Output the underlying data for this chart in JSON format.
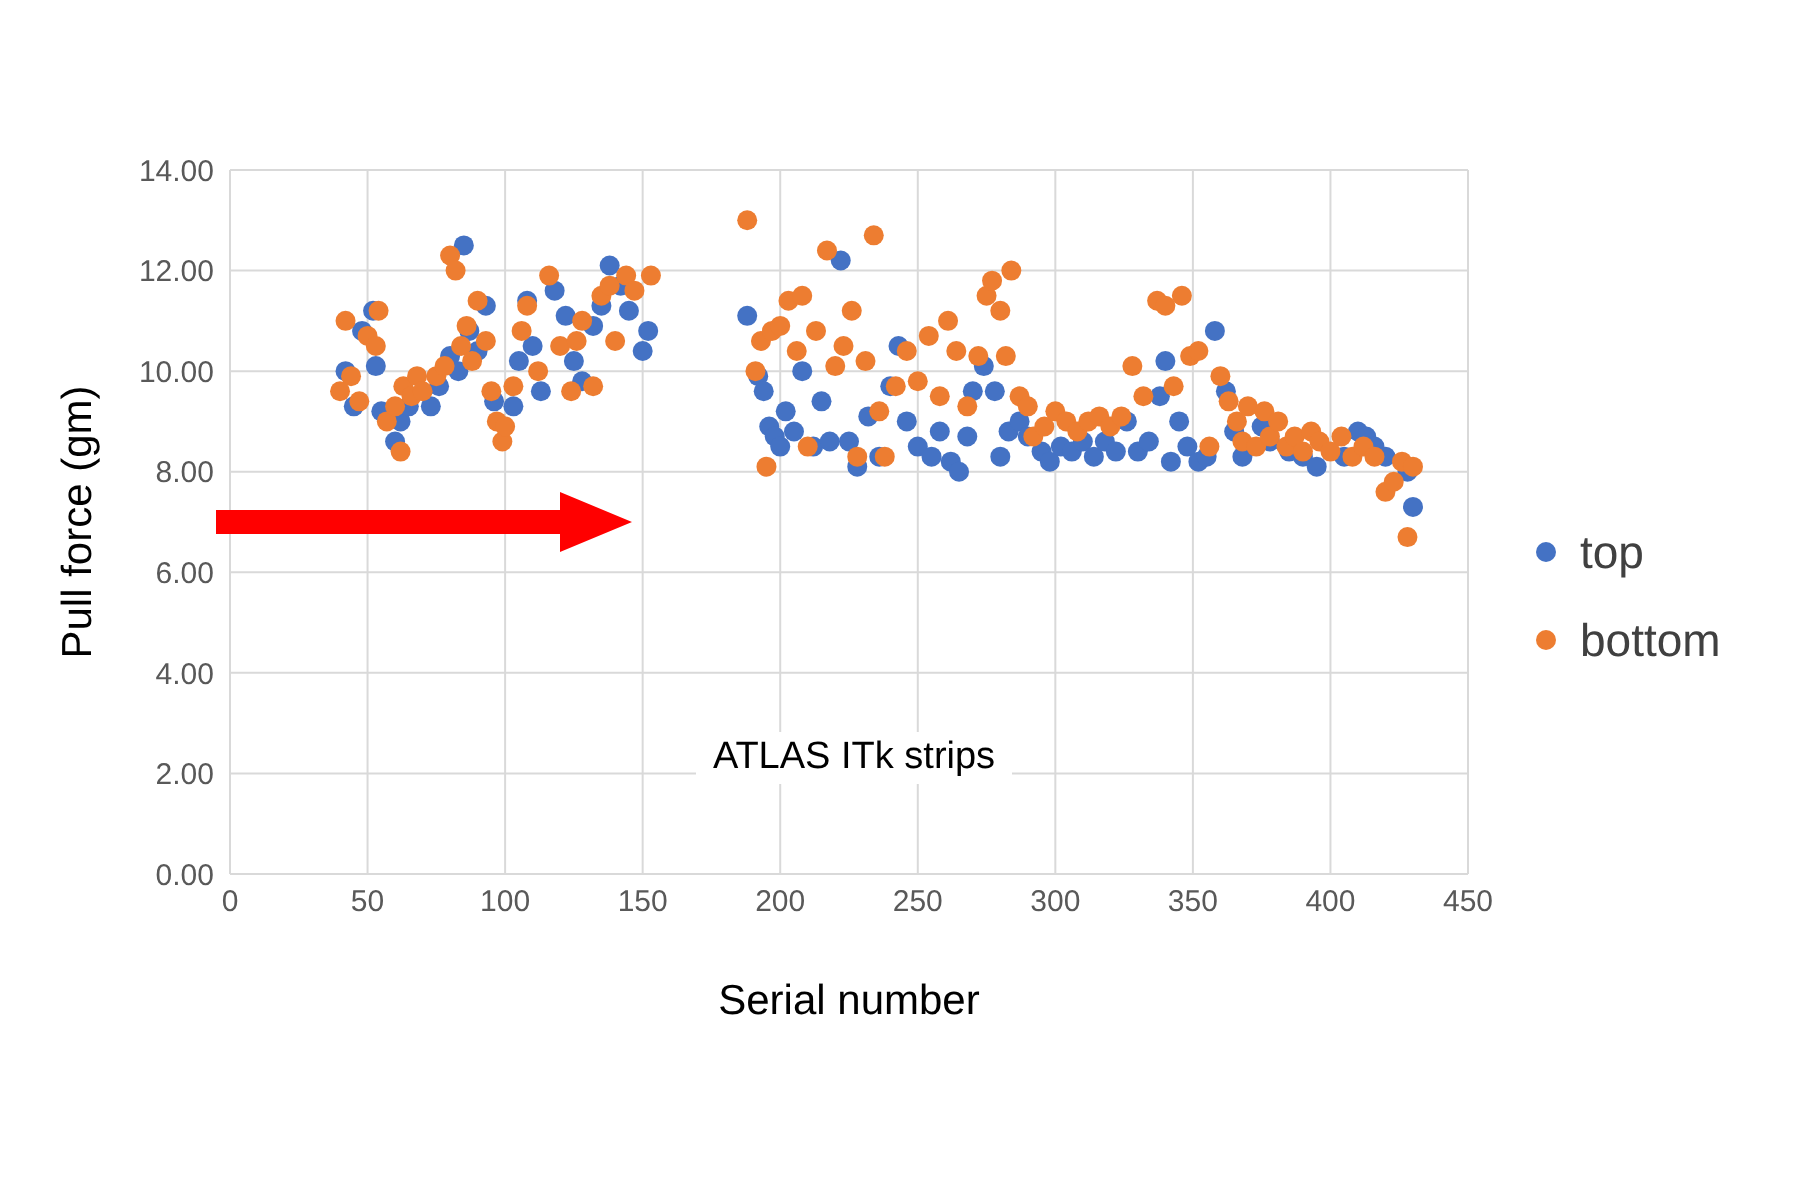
{
  "chart_data": {
    "type": "scatter",
    "xlabel": "Serial number",
    "ylabel": "Pull force (gm)",
    "annotations": [
      "ATLAS ITk strips"
    ],
    "xlim": [
      0,
      450
    ],
    "xticks": [
      0,
      50,
      100,
      150,
      200,
      250,
      300,
      350,
      400,
      450
    ],
    "ylim": [
      0,
      14
    ],
    "yticks": [
      {
        "value": 0,
        "label": "0.00"
      },
      {
        "value": 2,
        "label": "2.00"
      },
      {
        "value": 4,
        "label": "4.00"
      },
      {
        "value": 6,
        "label": "6.00"
      },
      {
        "value": 8,
        "label": "8.00"
      },
      {
        "value": 10,
        "label": "10.00"
      },
      {
        "value": 12,
        "label": "12.00"
      },
      {
        "value": 14,
        "label": "14.00"
      }
    ],
    "grid": true,
    "legend": "right",
    "marker": "circle",
    "series": [
      {
        "name": "top",
        "color": "#4472c4",
        "x": [
          42,
          45,
          48,
          52,
          53,
          55,
          60,
          62,
          65,
          73,
          76,
          80,
          83,
          85,
          87,
          90,
          93,
          96,
          103,
          105,
          108,
          110,
          113,
          118,
          122,
          125,
          128,
          132,
          135,
          138,
          142,
          145,
          150,
          152,
          188,
          192,
          194,
          196,
          198,
          200,
          202,
          205,
          208,
          212,
          215,
          218,
          222,
          225,
          228,
          232,
          236,
          240,
          243,
          246,
          250,
          255,
          258,
          262,
          265,
          268,
          270,
          274,
          278,
          280,
          283,
          287,
          290,
          295,
          298,
          302,
          306,
          310,
          314,
          318,
          322,
          326,
          330,
          334,
          338,
          340,
          342,
          345,
          348,
          352,
          355,
          358,
          362,
          365,
          368,
          375,
          378,
          385,
          390,
          395,
          405,
          410,
          413,
          416,
          420,
          428,
          430
        ],
        "values": [
          10.0,
          9.3,
          10.8,
          11.2,
          10.1,
          9.2,
          8.6,
          9.0,
          9.3,
          9.3,
          9.7,
          10.3,
          10.0,
          12.5,
          10.8,
          10.4,
          11.3,
          9.4,
          9.3,
          10.2,
          11.4,
          10.5,
          9.6,
          11.6,
          11.1,
          10.2,
          9.8,
          10.9,
          11.3,
          12.1,
          11.7,
          11.2,
          10.4,
          10.8,
          11.1,
          9.9,
          9.6,
          8.9,
          8.7,
          8.5,
          9.2,
          8.8,
          10.0,
          8.5,
          9.4,
          8.6,
          12.2,
          8.6,
          8.1,
          9.1,
          8.3,
          9.7,
          10.5,
          9.0,
          8.5,
          8.3,
          8.8,
          8.2,
          8.0,
          8.7,
          9.6,
          10.1,
          9.6,
          8.3,
          8.8,
          9.0,
          8.7,
          8.4,
          8.2,
          8.5,
          8.4,
          8.6,
          8.3,
          8.6,
          8.4,
          9.0,
          8.4,
          8.6,
          9.5,
          10.2,
          8.2,
          9.0,
          8.5,
          8.2,
          8.3,
          10.8,
          9.6,
          8.8,
          8.3,
          8.9,
          8.6,
          8.4,
          8.3,
          8.1,
          8.3,
          8.8,
          8.7,
          8.5,
          8.3,
          8.0,
          7.3
        ]
      },
      {
        "name": "bottom",
        "color": "#ed7d31",
        "x": [
          40,
          42,
          44,
          47,
          50,
          53,
          54,
          57,
          60,
          62,
          63,
          66,
          68,
          70,
          75,
          78,
          80,
          82,
          84,
          86,
          88,
          90,
          93,
          95,
          97,
          99,
          100,
          103,
          106,
          108,
          112,
          116,
          120,
          124,
          126,
          128,
          132,
          135,
          138,
          140,
          144,
          147,
          153,
          188,
          191,
          193,
          195,
          197,
          200,
          203,
          206,
          208,
          210,
          213,
          217,
          220,
          223,
          226,
          228,
          231,
          234,
          236,
          238,
          242,
          246,
          250,
          254,
          258,
          261,
          264,
          268,
          272,
          275,
          277,
          280,
          282,
          284,
          287,
          290,
          292,
          296,
          300,
          304,
          308,
          312,
          316,
          320,
          324,
          328,
          332,
          337,
          340,
          343,
          346,
          349,
          352,
          356,
          360,
          363,
          366,
          368,
          370,
          373,
          376,
          378,
          381,
          384,
          387,
          390,
          393,
          396,
          400,
          404,
          408,
          412,
          416,
          420,
          423,
          426,
          428,
          430
        ],
        "values": [
          9.6,
          11.0,
          9.9,
          9.4,
          10.7,
          10.5,
          11.2,
          9.0,
          9.3,
          8.4,
          9.7,
          9.5,
          9.9,
          9.6,
          9.9,
          10.1,
          12.3,
          12.0,
          10.5,
          10.9,
          10.2,
          11.4,
          10.6,
          9.6,
          9.0,
          8.6,
          8.9,
          9.7,
          10.8,
          11.3,
          10.0,
          11.9,
          10.5,
          9.6,
          10.6,
          11.0,
          9.7,
          11.5,
          11.7,
          10.6,
          11.9,
          11.6,
          11.9,
          13.0,
          10.0,
          10.6,
          8.1,
          10.8,
          10.9,
          11.4,
          10.4,
          11.5,
          8.5,
          10.8,
          12.4,
          10.1,
          10.5,
          11.2,
          8.3,
          10.2,
          12.7,
          9.2,
          8.3,
          9.7,
          10.4,
          9.8,
          10.7,
          9.5,
          11.0,
          10.4,
          9.3,
          10.3,
          11.5,
          11.8,
          11.2,
          10.3,
          12.0,
          9.5,
          9.3,
          8.7,
          8.9,
          9.2,
          9.0,
          8.8,
          9.0,
          9.1,
          8.9,
          9.1,
          10.1,
          9.5,
          11.4,
          11.3,
          9.7,
          11.5,
          10.3,
          10.4,
          8.5,
          9.9,
          9.4,
          9.0,
          8.6,
          9.3,
          8.5,
          9.2,
          8.7,
          9.0,
          8.5,
          8.7,
          8.4,
          8.8,
          8.6,
          8.4,
          8.7,
          8.3,
          8.5,
          8.3,
          7.6,
          7.8,
          8.2,
          6.7,
          8.1
        ]
      }
    ]
  }
}
